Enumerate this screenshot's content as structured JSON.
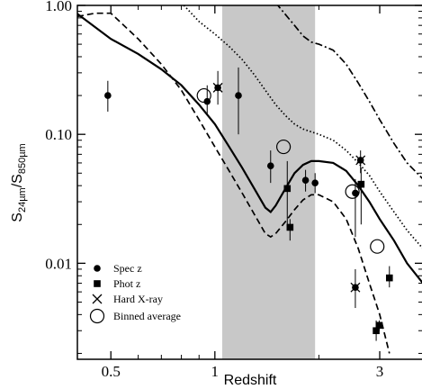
{
  "chart_data": {
    "type": "scatter",
    "xlabel": "Redshift",
    "ylabel": {
      "main": "S",
      "sub1": "24µm",
      "sep": "/S",
      "sub2": "850µm"
    },
    "xscale": "log",
    "yscale": "log",
    "xlim": [
      0.4,
      4.0
    ],
    "ylim": [
      0.0018,
      1.0
    ],
    "x_ticks": [
      0.5,
      1,
      3
    ],
    "x_tick_labels": [
      "0.5",
      "1",
      "3"
    ],
    "y_ticks": [
      0.01,
      0.1,
      1.0
    ],
    "y_tick_labels": [
      "0.01",
      "0.10",
      "1.00"
    ],
    "shaded_band": {
      "x": [
        1.05,
        1.95
      ],
      "color": "#c8c8c8"
    },
    "legend": {
      "position": "lower-left",
      "entries": [
        {
          "marker": "circle-filled",
          "label": "Spec z"
        },
        {
          "marker": "square-filled",
          "label": "Phot z"
        },
        {
          "marker": "cross",
          "label": "Hard X-ray"
        },
        {
          "marker": "circle-open",
          "label": "Binned average"
        }
      ]
    },
    "curves": [
      {
        "style": "solid",
        "points": [
          [
            0.4,
            0.86
          ],
          [
            0.5,
            0.55
          ],
          [
            0.6,
            0.42
          ],
          [
            0.7,
            0.32
          ],
          [
            0.8,
            0.24
          ],
          [
            0.9,
            0.17
          ],
          [
            1.0,
            0.12
          ],
          [
            1.1,
            0.08
          ],
          [
            1.2,
            0.055
          ],
          [
            1.3,
            0.038
          ],
          [
            1.4,
            0.027
          ],
          [
            1.45,
            0.025
          ],
          [
            1.5,
            0.028
          ],
          [
            1.6,
            0.038
          ],
          [
            1.7,
            0.05
          ],
          [
            1.8,
            0.058
          ],
          [
            1.9,
            0.062
          ],
          [
            2.0,
            0.062
          ],
          [
            2.2,
            0.06
          ],
          [
            2.4,
            0.052
          ],
          [
            2.6,
            0.04
          ],
          [
            2.8,
            0.03
          ],
          [
            3.0,
            0.022
          ],
          [
            3.3,
            0.015
          ],
          [
            3.6,
            0.01
          ],
          [
            4.0,
            0.007
          ]
        ]
      },
      {
        "style": "dashed",
        "points": [
          [
            0.4,
            0.82
          ],
          [
            0.45,
            0.87
          ],
          [
            0.5,
            0.87
          ],
          [
            0.6,
            0.55
          ],
          [
            0.7,
            0.35
          ],
          [
            0.8,
            0.22
          ],
          [
            0.9,
            0.13
          ],
          [
            1.0,
            0.08
          ],
          [
            1.1,
            0.052
          ],
          [
            1.2,
            0.035
          ],
          [
            1.3,
            0.024
          ],
          [
            1.4,
            0.017
          ],
          [
            1.45,
            0.016
          ],
          [
            1.5,
            0.017
          ],
          [
            1.6,
            0.021
          ],
          [
            1.7,
            0.026
          ],
          [
            1.8,
            0.031
          ],
          [
            1.9,
            0.034
          ],
          [
            2.0,
            0.034
          ],
          [
            2.2,
            0.03
          ],
          [
            2.4,
            0.022
          ],
          [
            2.6,
            0.013
          ],
          [
            2.8,
            0.007
          ],
          [
            3.0,
            0.004
          ],
          [
            3.2,
            0.002
          ]
        ]
      },
      {
        "style": "dotted",
        "points": [
          [
            0.8,
            1.05
          ],
          [
            0.9,
            0.75
          ],
          [
            1.0,
            0.6
          ],
          [
            1.1,
            0.48
          ],
          [
            1.2,
            0.38
          ],
          [
            1.3,
            0.29
          ],
          [
            1.4,
            0.22
          ],
          [
            1.5,
            0.17
          ],
          [
            1.6,
            0.14
          ],
          [
            1.7,
            0.12
          ],
          [
            1.8,
            0.11
          ],
          [
            2.0,
            0.1
          ],
          [
            2.2,
            0.09
          ],
          [
            2.4,
            0.075
          ],
          [
            2.6,
            0.06
          ],
          [
            2.8,
            0.048
          ],
          [
            3.0,
            0.036
          ],
          [
            3.3,
            0.025
          ],
          [
            3.6,
            0.018
          ],
          [
            4.0,
            0.013
          ]
        ]
      },
      {
        "style": "dashdot",
        "points": [
          [
            1.5,
            1.05
          ],
          [
            1.6,
            0.85
          ],
          [
            1.7,
            0.7
          ],
          [
            1.8,
            0.58
          ],
          [
            1.9,
            0.52
          ],
          [
            2.0,
            0.5
          ],
          [
            2.2,
            0.45
          ],
          [
            2.4,
            0.35
          ],
          [
            2.6,
            0.25
          ],
          [
            2.8,
            0.18
          ],
          [
            3.0,
            0.13
          ],
          [
            3.3,
            0.085
          ],
          [
            3.6,
            0.06
          ],
          [
            4.0,
            0.045
          ]
        ]
      }
    ],
    "series": [
      {
        "marker": "circle-filled",
        "points": [
          {
            "x": 0.49,
            "y": 0.2,
            "err": [
              0.15,
              0.26
            ]
          },
          {
            "x": 0.95,
            "y": 0.18,
            "err": [
              0.14,
              0.24
            ]
          },
          {
            "x": 1.02,
            "y": 0.23,
            "err": [
              0.17,
              0.31
            ]
          },
          {
            "x": 1.17,
            "y": 0.2,
            "err": [
              0.1,
              0.33
            ]
          },
          {
            "x": 1.45,
            "y": 0.057,
            "err": [
              0.042,
              0.075
            ]
          },
          {
            "x": 1.83,
            "y": 0.044,
            "err": [
              0.036,
              0.053
            ]
          },
          {
            "x": 1.95,
            "y": 0.042,
            "err": [
              0.035,
              0.05
            ]
          },
          {
            "x": 2.55,
            "y": 0.035,
            "err": [
              0.016,
              0.045
            ]
          }
        ]
      },
      {
        "marker": "square-filled",
        "points": [
          {
            "x": 1.62,
            "y": 0.038,
            "err": [
              0.02,
              0.062
            ]
          },
          {
            "x": 1.65,
            "y": 0.019,
            "err": [
              0.015,
              0.022
            ]
          },
          {
            "x": 2.65,
            "y": 0.041,
            "err": [
              0.02,
              0.055
            ]
          },
          {
            "x": 2.93,
            "y": 0.003,
            "err": [
              0.0025,
              0.0036
            ]
          },
          {
            "x": 2.99,
            "y": 0.0033,
            "err": [
              0.003,
              0.0036
            ]
          },
          {
            "x": 3.2,
            "y": 0.0077,
            "err": [
              0.0065,
              0.0095
            ]
          }
        ]
      },
      {
        "marker": "cross",
        "points": [
          {
            "x": 1.02,
            "y": 0.23
          },
          {
            "x": 2.55,
            "y": 0.0065
          },
          {
            "x": 2.64,
            "y": 0.063
          }
        ]
      },
      {
        "marker": "circle-open",
        "points": [
          {
            "x": 0.93,
            "y": 0.2
          },
          {
            "x": 1.58,
            "y": 0.08
          },
          {
            "x": 2.5,
            "y": 0.036
          },
          {
            "x": 2.95,
            "y": 0.0135
          }
        ]
      }
    ],
    "extra_filled_markers": [
      {
        "marker": "circle-filled",
        "x": 2.64,
        "y": 0.063,
        "err": [
          0.05,
          0.075
        ]
      },
      {
        "marker": "circle-filled",
        "x": 2.55,
        "y": 0.0065,
        "err": [
          0.0045,
          0.009
        ]
      }
    ]
  }
}
